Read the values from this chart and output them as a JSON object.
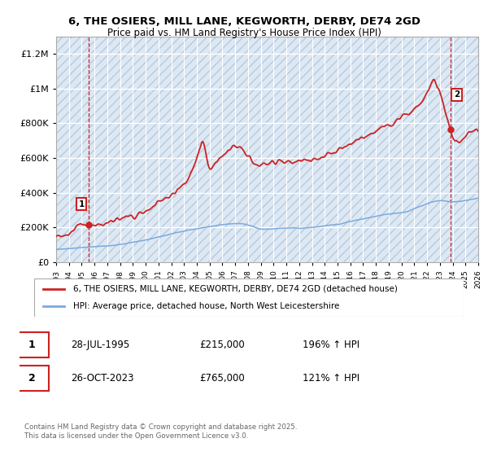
{
  "title1": "6, THE OSIERS, MILL LANE, KEGWORTH, DERBY, DE74 2GD",
  "title2": "Price paid vs. HM Land Registry's House Price Index (HPI)",
  "ytick_vals": [
    0,
    200000,
    400000,
    600000,
    800000,
    1000000,
    1200000
  ],
  "ytick_labels": [
    "£0",
    "£200K",
    "£400K",
    "£600K",
    "£800K",
    "£1M",
    "£1.2M"
  ],
  "ylim": [
    0,
    1300000
  ],
  "xlim_start": 1993,
  "xlim_end": 2026,
  "xticks": [
    1993,
    1994,
    1995,
    1996,
    1997,
    1998,
    1999,
    2000,
    2001,
    2002,
    2003,
    2004,
    2005,
    2006,
    2007,
    2008,
    2009,
    2010,
    2011,
    2012,
    2013,
    2014,
    2015,
    2016,
    2017,
    2018,
    2019,
    2020,
    2021,
    2022,
    2023,
    2024,
    2025,
    2026
  ],
  "hpi_color": "#7aaadd",
  "price_color": "#cc2222",
  "bg_color": "#dde8f5",
  "marker1_date": 1995.57,
  "marker1_price": 215000,
  "marker2_date": 2023.82,
  "marker2_price": 765000,
  "legend_label1": "6, THE OSIERS, MILL LANE, KEGWORTH, DERBY, DE74 2GD (detached house)",
  "legend_label2": "HPI: Average price, detached house, North West Leicestershire",
  "note1_date": "28-JUL-1995",
  "note1_price": "£215,000",
  "note1_hpi": "196% ↑ HPI",
  "note2_date": "26-OCT-2023",
  "note2_price": "£765,000",
  "note2_hpi": "121% ↑ HPI",
  "footer": "Contains HM Land Registry data © Crown copyright and database right 2025.\nThis data is licensed under the Open Government Licence v3.0."
}
